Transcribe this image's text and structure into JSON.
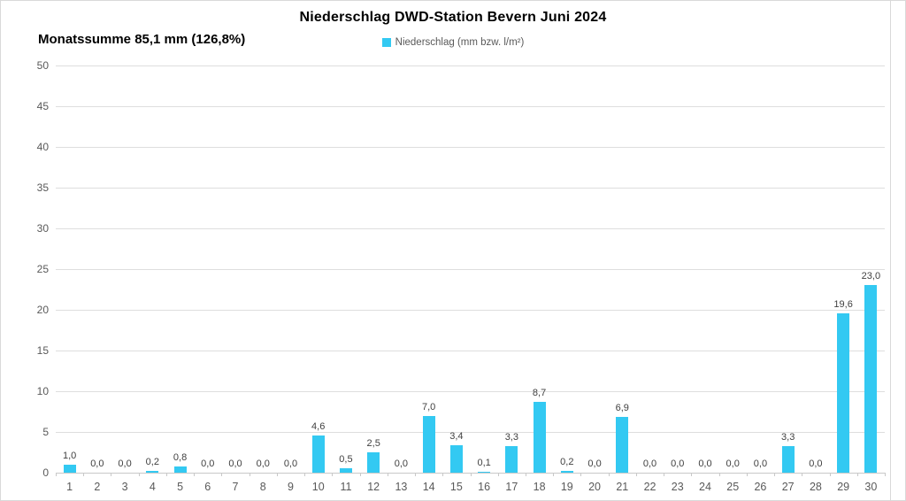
{
  "chart_data": {
    "type": "bar",
    "title": "Niederschlag DWD-Station  Bevern Juni 2024",
    "subtitle": "Monatssumme 85,1 mm (126,8%)",
    "legend": "Niederschlag (mm bzw. l/m²)",
    "legend_position": "top",
    "categories": [
      "1",
      "2",
      "3",
      "4",
      "5",
      "6",
      "7",
      "8",
      "9",
      "10",
      "11",
      "12",
      "13",
      "14",
      "15",
      "16",
      "17",
      "18",
      "19",
      "20",
      "21",
      "22",
      "23",
      "24",
      "25",
      "26",
      "27",
      "28",
      "29",
      "30"
    ],
    "values": [
      1.0,
      0.0,
      0.0,
      0.2,
      0.8,
      0.0,
      0.0,
      0.0,
      0.0,
      4.6,
      0.5,
      2.5,
      0.0,
      7.0,
      3.4,
      0.1,
      3.3,
      8.7,
      0.2,
      0.0,
      6.9,
      0.0,
      0.0,
      0.0,
      0.0,
      0.0,
      3.3,
      0.0,
      19.6,
      23.0
    ],
    "value_labels": [
      "1,0",
      "0,0",
      "0,0",
      "0,2",
      "0,8",
      "0,0",
      "0,0",
      "0,0",
      "0,0",
      "4,6",
      "0,5",
      "2,5",
      "0,0",
      "7,0",
      "3,4",
      "0,1",
      "3,3",
      "8,7",
      "0,2",
      "0,0",
      "6,9",
      "0,0",
      "0,0",
      "0,0",
      "0,0",
      "0,0",
      "3,3",
      "0,0",
      "19,6",
      "23,0"
    ],
    "ylim": [
      0,
      50
    ],
    "yticks": [
      0,
      5,
      10,
      15,
      20,
      25,
      30,
      35,
      40,
      45,
      50
    ],
    "grid": true,
    "xlabel": "",
    "ylabel": "",
    "bar_color": "#33c9f2",
    "grid_color": "#dedede",
    "axis_color": "#c8c8c8",
    "label_color": "#404040",
    "tick_label_color": "#595959"
  }
}
